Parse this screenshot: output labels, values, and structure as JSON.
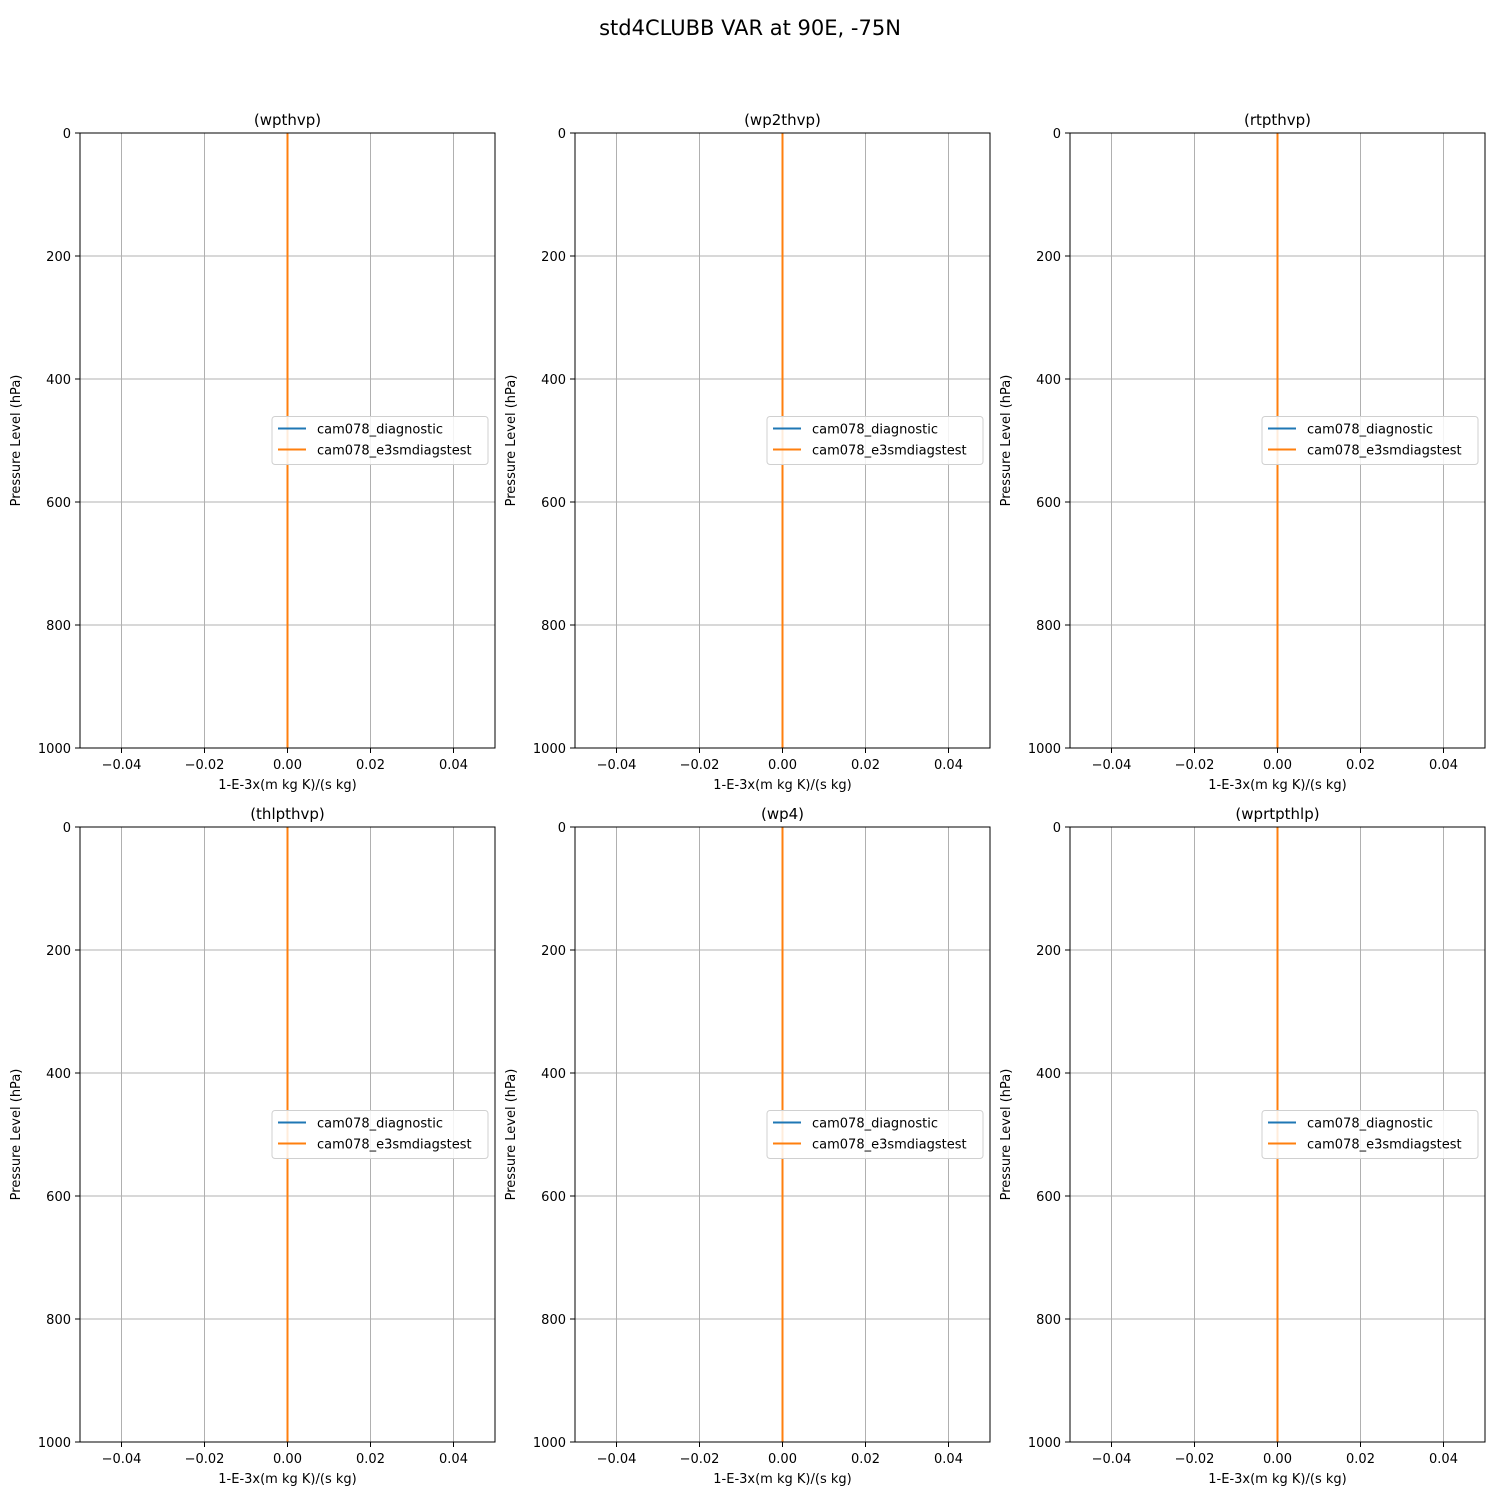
{
  "figure": {
    "title": "std4CLUBB VAR at 90E, -75N"
  },
  "colors": {
    "diagnostic": "#1f77b4",
    "e3smdiagstest": "#ff7f0e",
    "grid": "#b0b0b0",
    "axes": "#000000"
  },
  "chart_data": [
    {
      "type": "line",
      "title": "(wpthvp)",
      "xlabel": "1-E-3x(m kg K)/(s kg)",
      "ylabel": "Pressure Level (hPa)",
      "xlim": [
        -0.05,
        0.05
      ],
      "ylim": [
        1000,
        0
      ],
      "y_inverted": true,
      "xticks": [
        -0.04,
        -0.02,
        0.0,
        0.02,
        0.04
      ],
      "xtick_labels": [
        "−0.04",
        "−0.02",
        "0.00",
        "0.02",
        "0.04"
      ],
      "yticks": [
        0,
        200,
        400,
        600,
        800,
        1000
      ],
      "ytick_labels": [
        "0",
        "200",
        "400",
        "600",
        "800",
        "1000"
      ],
      "grid": true,
      "legend": "center right",
      "series": [
        {
          "name": "cam078_diagnostic",
          "color": "#1f77b4",
          "x": [
            0,
            0
          ],
          "y": [
            0,
            1000
          ]
        },
        {
          "name": "cam078_e3smdiagstest",
          "color": "#ff7f0e",
          "x": [
            0,
            0
          ],
          "y": [
            0,
            1000
          ]
        }
      ]
    },
    {
      "type": "line",
      "title": "(wp2thvp)",
      "xlabel": "1-E-3x(m kg K)/(s kg)",
      "ylabel": "Pressure Level (hPa)",
      "xlim": [
        -0.05,
        0.05
      ],
      "ylim": [
        1000,
        0
      ],
      "y_inverted": true,
      "xticks": [
        -0.04,
        -0.02,
        0.0,
        0.02,
        0.04
      ],
      "xtick_labels": [
        "−0.04",
        "−0.02",
        "0.00",
        "0.02",
        "0.04"
      ],
      "yticks": [
        0,
        200,
        400,
        600,
        800,
        1000
      ],
      "ytick_labels": [
        "0",
        "200",
        "400",
        "600",
        "800",
        "1000"
      ],
      "grid": true,
      "legend": "center right",
      "series": [
        {
          "name": "cam078_diagnostic",
          "color": "#1f77b4",
          "x": [
            0,
            0
          ],
          "y": [
            0,
            1000
          ]
        },
        {
          "name": "cam078_e3smdiagstest",
          "color": "#ff7f0e",
          "x": [
            0,
            0
          ],
          "y": [
            0,
            1000
          ]
        }
      ]
    },
    {
      "type": "line",
      "title": "(rtpthvp)",
      "xlabel": "1-E-3x(m kg K)/(s kg)",
      "ylabel": "Pressure Level (hPa)",
      "xlim": [
        -0.05,
        0.05
      ],
      "ylim": [
        1000,
        0
      ],
      "y_inverted": true,
      "xticks": [
        -0.04,
        -0.02,
        0.0,
        0.02,
        0.04
      ],
      "xtick_labels": [
        "−0.04",
        "−0.02",
        "0.00",
        "0.02",
        "0.04"
      ],
      "yticks": [
        0,
        200,
        400,
        600,
        800,
        1000
      ],
      "ytick_labels": [
        "0",
        "200",
        "400",
        "600",
        "800",
        "1000"
      ],
      "grid": true,
      "legend": "center right",
      "series": [
        {
          "name": "cam078_diagnostic",
          "color": "#1f77b4",
          "x": [
            0,
            0
          ],
          "y": [
            0,
            1000
          ]
        },
        {
          "name": "cam078_e3smdiagstest",
          "color": "#ff7f0e",
          "x": [
            0,
            0
          ],
          "y": [
            0,
            1000
          ]
        }
      ]
    },
    {
      "type": "line",
      "title": "(thlpthvp)",
      "xlabel": "1-E-3x(m kg K)/(s kg)",
      "ylabel": "Pressure Level (hPa)",
      "xlim": [
        -0.05,
        0.05
      ],
      "ylim": [
        1000,
        0
      ],
      "y_inverted": true,
      "xticks": [
        -0.04,
        -0.02,
        0.0,
        0.02,
        0.04
      ],
      "xtick_labels": [
        "−0.04",
        "−0.02",
        "0.00",
        "0.02",
        "0.04"
      ],
      "yticks": [
        0,
        200,
        400,
        600,
        800,
        1000
      ],
      "ytick_labels": [
        "0",
        "200",
        "400",
        "600",
        "800",
        "1000"
      ],
      "grid": true,
      "legend": "center right",
      "series": [
        {
          "name": "cam078_diagnostic",
          "color": "#1f77b4",
          "x": [
            0,
            0
          ],
          "y": [
            0,
            1000
          ]
        },
        {
          "name": "cam078_e3smdiagstest",
          "color": "#ff7f0e",
          "x": [
            0,
            0
          ],
          "y": [
            0,
            1000
          ]
        }
      ]
    },
    {
      "type": "line",
      "title": "(wp4)",
      "xlabel": "1-E-3x(m kg K)/(s kg)",
      "ylabel": "Pressure Level (hPa)",
      "xlim": [
        -0.05,
        0.05
      ],
      "ylim": [
        1000,
        0
      ],
      "y_inverted": true,
      "xticks": [
        -0.04,
        -0.02,
        0.0,
        0.02,
        0.04
      ],
      "xtick_labels": [
        "−0.04",
        "−0.02",
        "0.00",
        "0.02",
        "0.04"
      ],
      "yticks": [
        0,
        200,
        400,
        600,
        800,
        1000
      ],
      "ytick_labels": [
        "0",
        "200",
        "400",
        "600",
        "800",
        "1000"
      ],
      "grid": true,
      "legend": "center right",
      "series": [
        {
          "name": "cam078_diagnostic",
          "color": "#1f77b4",
          "x": [
            0,
            0
          ],
          "y": [
            0,
            1000
          ]
        },
        {
          "name": "cam078_e3smdiagstest",
          "color": "#ff7f0e",
          "x": [
            0,
            0
          ],
          "y": [
            0,
            1000
          ]
        }
      ]
    },
    {
      "type": "line",
      "title": "(wprtpthlp)",
      "xlabel": "1-E-3x(m kg K)/(s kg)",
      "ylabel": "Pressure Level (hPa)",
      "xlim": [
        -0.05,
        0.05
      ],
      "ylim": [
        1000,
        0
      ],
      "y_inverted": true,
      "xticks": [
        -0.04,
        -0.02,
        0.0,
        0.02,
        0.04
      ],
      "xtick_labels": [
        "−0.04",
        "−0.02",
        "0.00",
        "0.02",
        "0.04"
      ],
      "yticks": [
        0,
        200,
        400,
        600,
        800,
        1000
      ],
      "ytick_labels": [
        "0",
        "200",
        "400",
        "600",
        "800",
        "1000"
      ],
      "grid": true,
      "legend": "center right",
      "series": [
        {
          "name": "cam078_diagnostic",
          "color": "#1f77b4",
          "x": [
            0,
            0
          ],
          "y": [
            0,
            1000
          ]
        },
        {
          "name": "cam078_e3smdiagstest",
          "color": "#ff7f0e",
          "x": [
            0,
            0
          ],
          "y": [
            0,
            1000
          ]
        }
      ]
    }
  ]
}
